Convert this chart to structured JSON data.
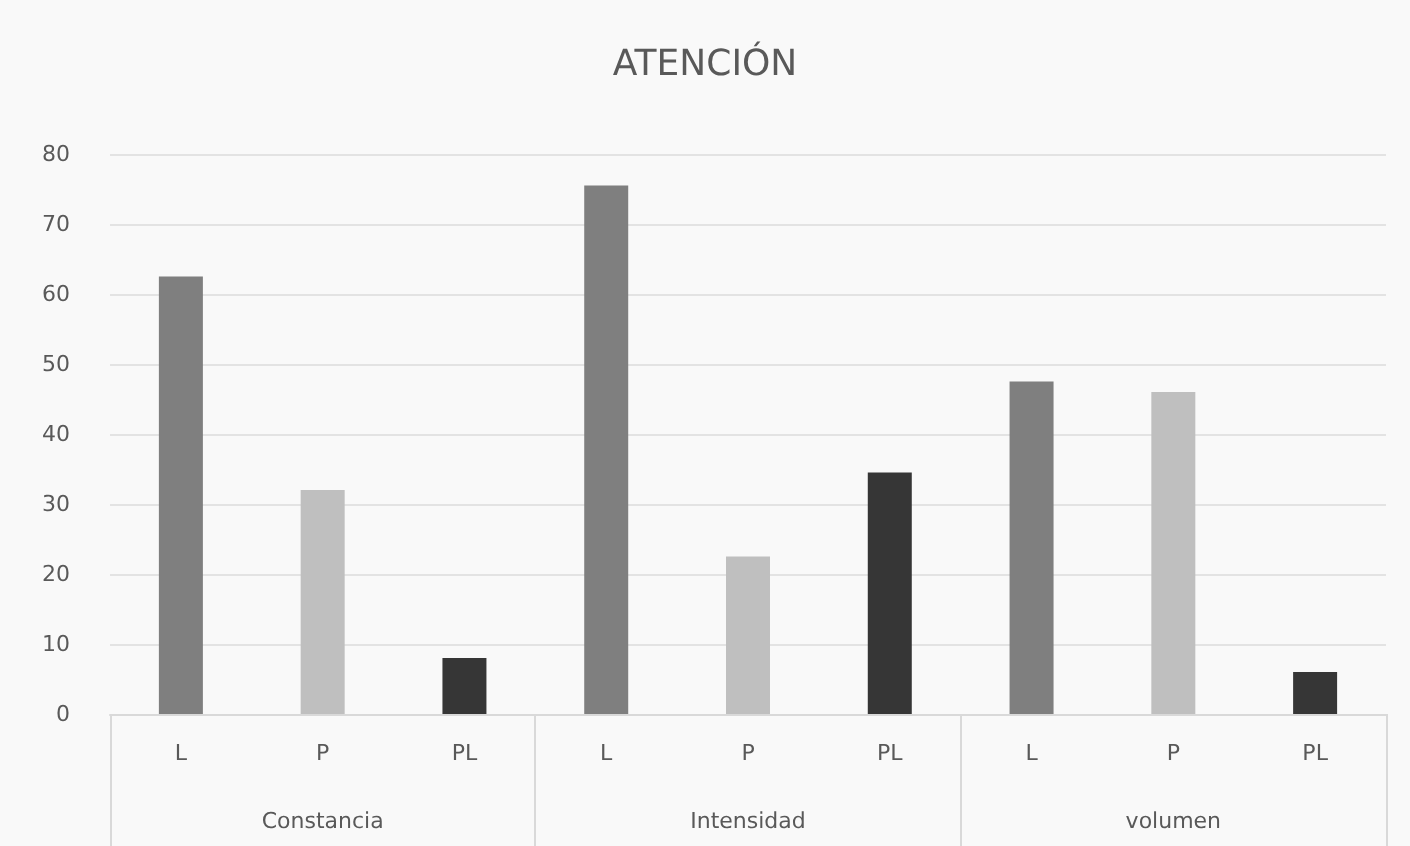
{
  "chart_data": {
    "type": "bar",
    "title": "ATENCIÓN",
    "categories": [
      "L",
      "P",
      "PL",
      "L",
      "P",
      "PL",
      "L",
      "P",
      "PL"
    ],
    "values": [
      62.5,
      32,
      8,
      75.5,
      22.5,
      34.5,
      47.5,
      46,
      6
    ],
    "colors": [
      "#7f7f7f",
      "#bfbfbf",
      "#363636",
      "#7f7f7f",
      "#bfbfbf",
      "#363636",
      "#7f7f7f",
      "#bfbfbf",
      "#363636"
    ],
    "annotations": [
      "Constancia",
      "Intensidad",
      "volumen"
    ],
    "ylim": [
      0,
      80
    ],
    "yticks": [
      0,
      10,
      20,
      30,
      40,
      50,
      60,
      70,
      80
    ],
    "grid": true
  }
}
